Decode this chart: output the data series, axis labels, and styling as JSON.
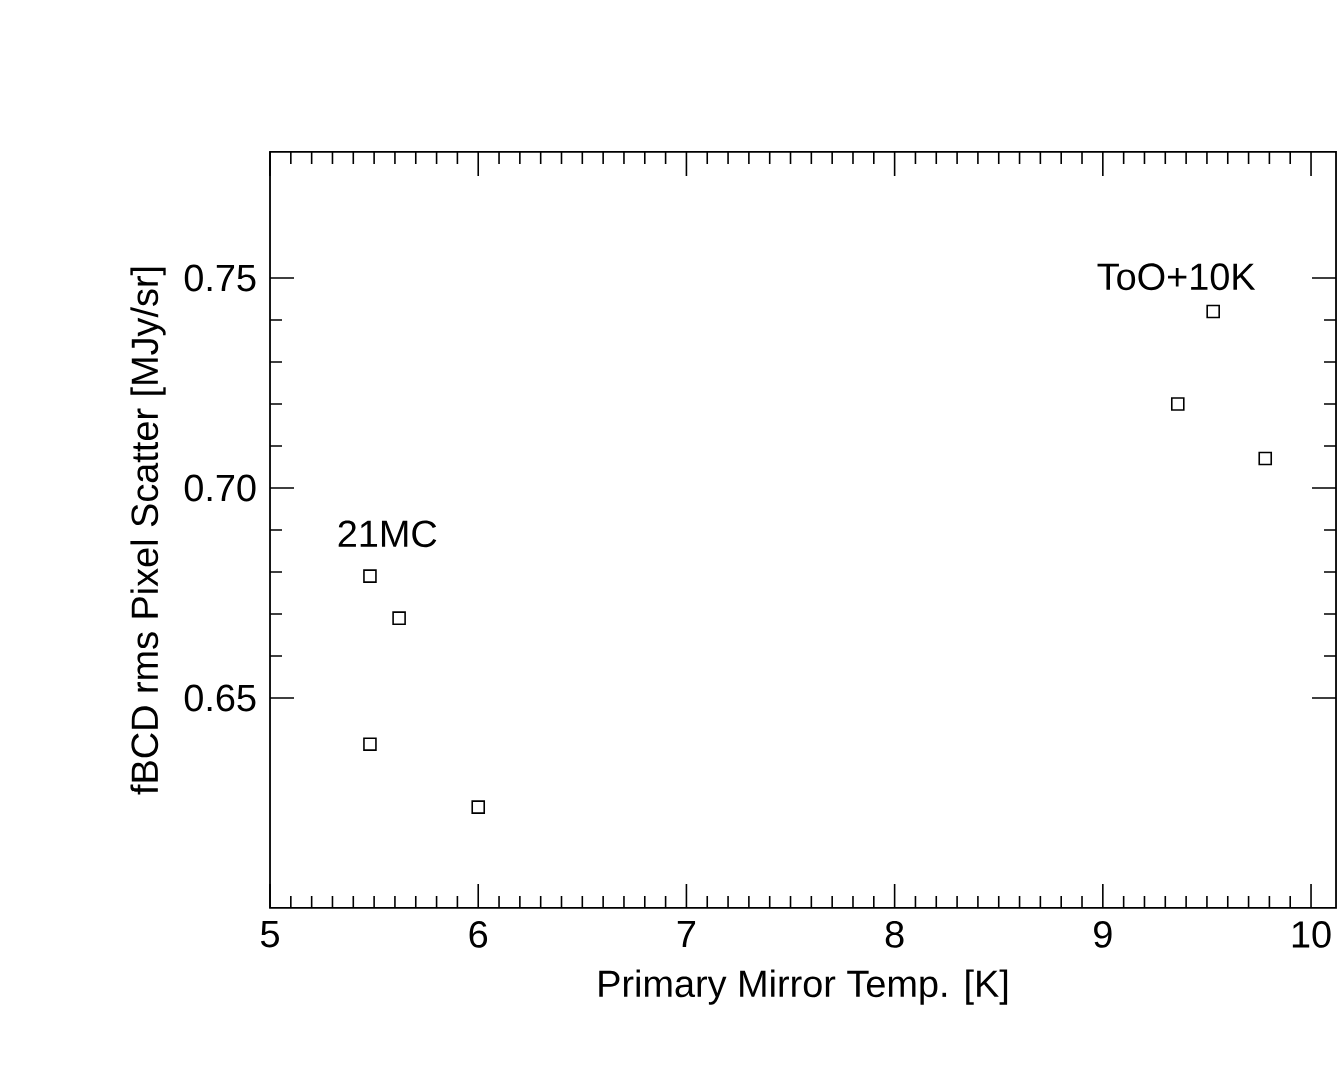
{
  "chart_data": {
    "type": "scatter",
    "xlabel": "Primary Mirror Temp. [K]",
    "ylabel": "fBCD rms Pixel Scatter [MJy/sr]",
    "x": [
      5.48,
      5.62,
      5.48,
      6.0,
      9.53,
      9.36,
      9.78
    ],
    "series": [
      {
        "color": "#000000",
        "values": [
          0.679,
          0.669,
          0.639,
          0.624,
          0.742,
          0.72,
          0.707
        ]
      }
    ],
    "xlim": [
      5,
      10.12
    ],
    "ylim": [
      0.6,
      0.78
    ],
    "xticks": [
      5,
      6,
      7,
      8,
      9,
      10
    ],
    "yticks": [
      {
        "value": 0.65,
        "label": "0.65"
      },
      {
        "value": 0.7,
        "label": "0.70"
      },
      {
        "value": 0.75,
        "label": "0.75"
      }
    ],
    "annotations": [
      "21MC",
      "ToO+10K"
    ],
    "marker": "square"
  }
}
